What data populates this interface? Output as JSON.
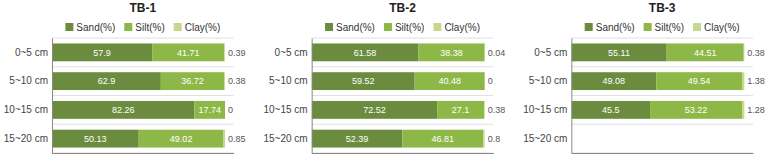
{
  "chart_data": [
    {
      "type": "bar",
      "orientation": "horizontal",
      "stacked": true,
      "title": "TB-1",
      "categories": [
        "0~5 cm",
        "5~10 cm",
        "10~15 cm",
        "15~20 cm"
      ],
      "series": [
        {
          "name": "Sand(%)",
          "color": "#6b8c3e",
          "values": [
            57.9,
            62.9,
            82.26,
            50.13
          ]
        },
        {
          "name": "Silt(%)",
          "color": "#8db847",
          "values": [
            41.71,
            36.72,
            17.74,
            49.02
          ]
        },
        {
          "name": "Clay(%)",
          "color": "#c5d98e",
          "values": [
            0.39,
            0.38,
            0,
            0.85
          ]
        }
      ],
      "xlim": [
        0,
        105
      ],
      "data_labels": true,
      "tick_labels": "y",
      "legend": "top"
    },
    {
      "type": "bar",
      "orientation": "horizontal",
      "stacked": true,
      "title": "TB-2",
      "categories": [
        "0~5 cm",
        "5~10 cm",
        "10~15 cm",
        "15~20 cm"
      ],
      "series": [
        {
          "name": "Sand(%)",
          "color": "#6b8c3e",
          "values": [
            61.58,
            59.52,
            72.52,
            52.39
          ]
        },
        {
          "name": "Silt(%)",
          "color": "#8db847",
          "values": [
            38.38,
            40.48,
            27.1,
            46.81
          ]
        },
        {
          "name": "Clay(%)",
          "color": "#c5d98e",
          "values": [
            0.04,
            0,
            0.38,
            0.8
          ]
        }
      ],
      "xlim": [
        0,
        105
      ],
      "data_labels": true,
      "tick_labels": "y",
      "legend": "top"
    },
    {
      "type": "bar",
      "orientation": "horizontal",
      "stacked": true,
      "title": "TB-3",
      "categories": [
        "0~5 cm",
        "5~10 cm",
        "10~15 cm",
        "15~20 cm"
      ],
      "series": [
        {
          "name": "Sand(%)",
          "color": "#6b8c3e",
          "values": [
            55.11,
            49.08,
            45.5,
            null
          ]
        },
        {
          "name": "Silt(%)",
          "color": "#8db847",
          "values": [
            44.51,
            49.54,
            53.22,
            null
          ]
        },
        {
          "name": "Clay(%)",
          "color": "#c5d98e",
          "values": [
            0.38,
            1.38,
            1.28,
            null
          ]
        }
      ],
      "xlim": [
        0,
        105
      ],
      "data_labels": true,
      "tick_labels": "y",
      "legend": "top"
    }
  ]
}
